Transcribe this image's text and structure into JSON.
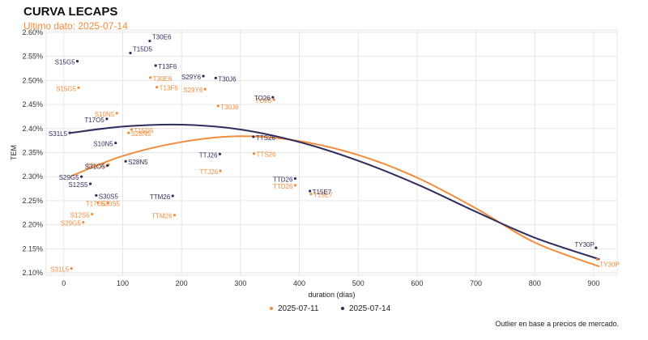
{
  "header": {
    "title": "CURVA LECAPS",
    "subtitle": "Ultimo dato: 2025-07-14",
    "caption": "Outlier en base a precios de mercado."
  },
  "colors": {
    "series_old": "#f28c3a",
    "series_new": "#2e2d5e",
    "grid": "#e6e6e6",
    "background": "#ffffff"
  },
  "chart_data": {
    "type": "scatter",
    "title": "CURVA LECAPS",
    "subtitle": "Ultimo dato: 2025-07-14",
    "xlabel": "duration (días)",
    "ylabel": "TEM",
    "xlim": [
      -30,
      940
    ],
    "ylim": [
      2.095,
      2.605
    ],
    "xticks": [
      0,
      100,
      200,
      300,
      400,
      500,
      600,
      700,
      800,
      900
    ],
    "yticks": [
      2.1,
      2.15,
      2.2,
      2.25,
      2.3,
      2.35,
      2.4,
      2.45,
      2.5,
      2.55,
      2.6
    ],
    "ytick_labels": [
      "2.10%",
      "2.15%",
      "2.20%",
      "2.25%",
      "2.30%",
      "2.35%",
      "2.40%",
      "2.45%",
      "2.50%",
      "2.55%",
      "2.60%"
    ],
    "grid": true,
    "legend_position": "bottom",
    "series": [
      {
        "name": "2025-07-11",
        "color": "#f28c3a",
        "points": [
          {
            "label": "S31L5",
            "x": 13,
            "y": 2.109
          },
          {
            "label": "S15G5",
            "x": 25,
            "y": 2.485
          },
          {
            "label": "S29G5",
            "x": 33,
            "y": 2.205
          },
          {
            "label": "S12S5",
            "x": 48,
            "y": 2.222
          },
          {
            "label": "S30S5",
            "x": 58,
            "y": 2.246
          },
          {
            "label": "T17O5",
            "x": 75,
            "y": 2.246
          },
          {
            "label": "S31O5",
            "x": 76,
            "y": 2.325
          },
          {
            "label": "S10N5",
            "x": 90,
            "y": 2.432
          },
          {
            "label": "S28N5",
            "x": 110,
            "y": 2.391
          },
          {
            "label": "T15D5",
            "x": 115,
            "y": 2.398
          },
          {
            "label": "T30E6",
            "x": 147,
            "y": 2.506
          },
          {
            "label": "T13F6",
            "x": 158,
            "y": 2.486
          },
          {
            "label": "TTM26",
            "x": 188,
            "y": 2.22
          },
          {
            "label": "S29Y6",
            "x": 240,
            "y": 2.482
          },
          {
            "label": "T30J6",
            "x": 262,
            "y": 2.447
          },
          {
            "label": "TTJ26",
            "x": 266,
            "y": 2.312
          },
          {
            "label": "TTS26",
            "x": 323,
            "y": 2.348
          },
          {
            "label": "TO26",
            "x": 357,
            "y": 2.46
          },
          {
            "label": "TTD26",
            "x": 393,
            "y": 2.282
          },
          {
            "label": "T15E7",
            "x": 420,
            "y": 2.264
          },
          {
            "label": "TY30P",
            "x": 906,
            "y": 2.128
          }
        ],
        "fit_curve": [
          {
            "x": 12,
            "y": 2.301
          },
          {
            "x": 100,
            "y": 2.343
          },
          {
            "x": 200,
            "y": 2.372
          },
          {
            "x": 300,
            "y": 2.384
          },
          {
            "x": 400,
            "y": 2.374
          },
          {
            "x": 500,
            "y": 2.345
          },
          {
            "x": 600,
            "y": 2.298
          },
          {
            "x": 700,
            "y": 2.234
          },
          {
            "x": 800,
            "y": 2.163
          },
          {
            "x": 910,
            "y": 2.113
          }
        ]
      },
      {
        "name": "2025-07-14",
        "color": "#2e2d5e",
        "points": [
          {
            "label": "S31L5",
            "x": 10,
            "y": 2.391
          },
          {
            "label": "S15G5",
            "x": 23,
            "y": 2.54
          },
          {
            "label": "S29G5",
            "x": 30,
            "y": 2.3
          },
          {
            "label": "S12S5",
            "x": 45,
            "y": 2.285
          },
          {
            "label": "S30S5",
            "x": 55,
            "y": 2.261
          },
          {
            "label": "T17O5",
            "x": 73,
            "y": 2.42
          },
          {
            "label": "S31O5",
            "x": 74,
            "y": 2.323
          },
          {
            "label": "S10N5",
            "x": 88,
            "y": 2.37
          },
          {
            "label": "S28N5",
            "x": 105,
            "y": 2.332
          },
          {
            "label": "T15D5",
            "x": 113,
            "y": 2.557
          },
          {
            "label": "T30E6",
            "x": 146,
            "y": 2.582
          },
          {
            "label": "T13F6",
            "x": 156,
            "y": 2.531
          },
          {
            "label": "TTM26",
            "x": 185,
            "y": 2.26
          },
          {
            "label": "S29Y6",
            "x": 237,
            "y": 2.509
          },
          {
            "label": "T30J6",
            "x": 258,
            "y": 2.505
          },
          {
            "label": "TTJ26",
            "x": 265,
            "y": 2.347
          },
          {
            "label": "TTS26",
            "x": 322,
            "y": 2.383
          },
          {
            "label": "TO26",
            "x": 355,
            "y": 2.465
          },
          {
            "label": "TTD26",
            "x": 393,
            "y": 2.296
          },
          {
            "label": "T15E7",
            "x": 418,
            "y": 2.27
          },
          {
            "label": "TY30P",
            "x": 904,
            "y": 2.152
          }
        ],
        "fit_curve": [
          {
            "x": 12,
            "y": 2.391
          },
          {
            "x": 100,
            "y": 2.404
          },
          {
            "x": 200,
            "y": 2.408
          },
          {
            "x": 300,
            "y": 2.398
          },
          {
            "x": 400,
            "y": 2.372
          },
          {
            "x": 500,
            "y": 2.333
          },
          {
            "x": 600,
            "y": 2.284
          },
          {
            "x": 700,
            "y": 2.227
          },
          {
            "x": 800,
            "y": 2.173
          },
          {
            "x": 910,
            "y": 2.128
          }
        ]
      }
    ]
  }
}
